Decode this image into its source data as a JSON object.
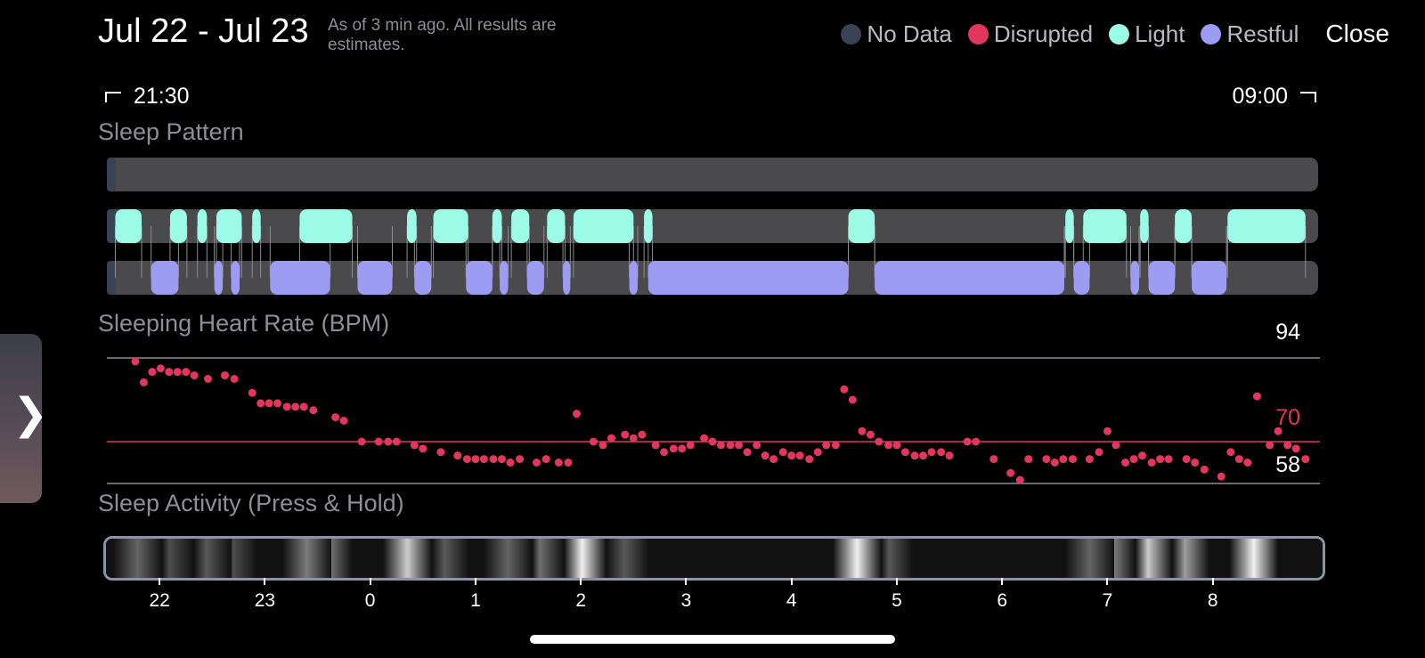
{
  "header": {
    "date_range": "Jul 22 - Jul 23",
    "as_of": "As of 3 min ago. All results are estimates.",
    "close_label": "Close"
  },
  "legend": [
    {
      "label": "No Data",
      "color": "#3a4256"
    },
    {
      "label": "Disrupted",
      "color": "#e2365c"
    },
    {
      "label": "Light",
      "color": "#9bfbe6"
    },
    {
      "label": "Restful",
      "color": "#9c9cf3"
    }
  ],
  "time_range": {
    "start": "21:30",
    "end": "09:00"
  },
  "sleep_pattern": {
    "title": "Sleep Pattern",
    "axis_start_hours": -2.5,
    "axis_end_hours": 9.0,
    "light_segments": [
      [
        -2.42,
        -2.17
      ],
      [
        -1.9,
        -1.74
      ],
      [
        -1.64,
        -1.55
      ],
      [
        -1.46,
        -1.22
      ],
      [
        -1.12,
        -1.04
      ],
      [
        -0.67,
        -0.17
      ],
      [
        0.35,
        0.44
      ],
      [
        0.6,
        0.93
      ],
      [
        1.16,
        1.25
      ],
      [
        1.34,
        1.51
      ],
      [
        1.68,
        1.85
      ],
      [
        1.93,
        2.5
      ],
      [
        2.6,
        2.68
      ],
      [
        4.54,
        4.79
      ],
      [
        6.6,
        6.68
      ],
      [
        6.77,
        7.18
      ],
      [
        7.31,
        7.39
      ],
      [
        7.64,
        7.8
      ],
      [
        8.14,
        8.88
      ]
    ],
    "restful_segments": [
      [
        -2.08,
        -1.82
      ],
      [
        -1.48,
        -1.4
      ],
      [
        -1.32,
        -1.24
      ],
      [
        -0.95,
        -0.38
      ],
      [
        -0.12,
        0.21
      ],
      [
        0.42,
        0.58
      ],
      [
        0.91,
        1.16
      ],
      [
        1.23,
        1.31
      ],
      [
        1.49,
        1.65
      ],
      [
        1.83,
        1.9
      ],
      [
        2.46,
        2.54
      ],
      [
        2.64,
        4.54
      ],
      [
        4.79,
        6.59
      ],
      [
        6.68,
        6.83
      ],
      [
        7.22,
        7.3
      ],
      [
        7.39,
        7.64
      ],
      [
        7.8,
        8.13
      ]
    ]
  },
  "heart_rate": {
    "title": "Sleeping Heart Rate (BPM)",
    "max_label": "94",
    "avg_label": "70",
    "min_label": "58"
  },
  "chart_data": {
    "type": "scatter",
    "title": "Sleeping Heart Rate (BPM)",
    "xlabel": "",
    "ylabel": "",
    "x_unit": "hours after midnight",
    "ylim": [
      58,
      94
    ],
    "reference_lines": {
      "max": 94,
      "average": 70,
      "min": 58
    },
    "x": [
      -2.23,
      -2.15,
      -2.07,
      -1.99,
      -1.91,
      -1.83,
      -1.75,
      -1.67,
      -1.54,
      -1.38,
      -1.29,
      -1.12,
      -1.04,
      -0.96,
      -0.88,
      -0.79,
      -0.71,
      -0.63,
      -0.54,
      -0.33,
      -0.25,
      -0.08,
      0.08,
      0.17,
      0.25,
      0.42,
      0.5,
      0.67,
      0.83,
      0.92,
      1.0,
      1.08,
      1.17,
      1.25,
      1.33,
      1.42,
      1.58,
      1.67,
      1.79,
      1.88,
      1.96,
      2.12,
      2.21,
      2.29,
      2.42,
      2.5,
      2.58,
      2.71,
      2.79,
      2.88,
      2.96,
      3.04,
      3.17,
      3.25,
      3.33,
      3.42,
      3.5,
      3.58,
      3.67,
      3.75,
      3.83,
      3.92,
      4.0,
      4.08,
      4.17,
      4.25,
      4.33,
      4.42,
      4.5,
      4.58,
      4.67,
      4.75,
      4.83,
      4.92,
      5.0,
      5.08,
      5.17,
      5.25,
      5.33,
      5.42,
      5.5,
      5.67,
      5.75,
      5.92,
      6.08,
      6.17,
      6.25,
      6.42,
      6.5,
      6.58,
      6.67,
      6.83,
      6.92,
      7.0,
      7.08,
      7.17,
      7.25,
      7.33,
      7.42,
      7.5,
      7.58,
      7.75,
      7.83,
      7.92,
      8.08,
      8.17,
      8.25,
      8.33,
      8.42,
      8.54,
      8.62,
      8.71,
      8.79,
      8.88
    ],
    "y": [
      93,
      87,
      90,
      91,
      90,
      90,
      90,
      89,
      88,
      89,
      88,
      84,
      81,
      81,
      81,
      80,
      80,
      80,
      79,
      77,
      76,
      70,
      70,
      70,
      70,
      69,
      68,
      67,
      66,
      65,
      65,
      65,
      65,
      65,
      64,
      65,
      64,
      65,
      64,
      64,
      78,
      70,
      69,
      71,
      72,
      71,
      72,
      69,
      67,
      68,
      68,
      69,
      71,
      70,
      69,
      69,
      69,
      67,
      69,
      66,
      65,
      67,
      66,
      66,
      65,
      67,
      69,
      69,
      85,
      82,
      73,
      72,
      70,
      69,
      69,
      67,
      66,
      66,
      67,
      67,
      66,
      70,
      70,
      65,
      61,
      59,
      65,
      65,
      64,
      65,
      65,
      65,
      67,
      73,
      69,
      64,
      65,
      66,
      64,
      65,
      65,
      65,
      64,
      62,
      60,
      67,
      65,
      64,
      83,
      69,
      73,
      69,
      68,
      65
    ]
  },
  "sleep_activity": {
    "title": "Sleep Activity (Press & Hold)"
  },
  "hour_axis": [
    {
      "label": "22",
      "hours": -2
    },
    {
      "label": "23",
      "hours": -1
    },
    {
      "label": "0",
      "hours": 0
    },
    {
      "label": "1",
      "hours": 1
    },
    {
      "label": "2",
      "hours": 2
    },
    {
      "label": "3",
      "hours": 3
    },
    {
      "label": "4",
      "hours": 4
    },
    {
      "label": "5",
      "hours": 5
    },
    {
      "label": "6",
      "hours": 6
    },
    {
      "label": "7",
      "hours": 7
    },
    {
      "label": "8",
      "hours": 8
    }
  ],
  "side_tab": {
    "chevron": "❯",
    "icon": "chevron-right-icon"
  }
}
